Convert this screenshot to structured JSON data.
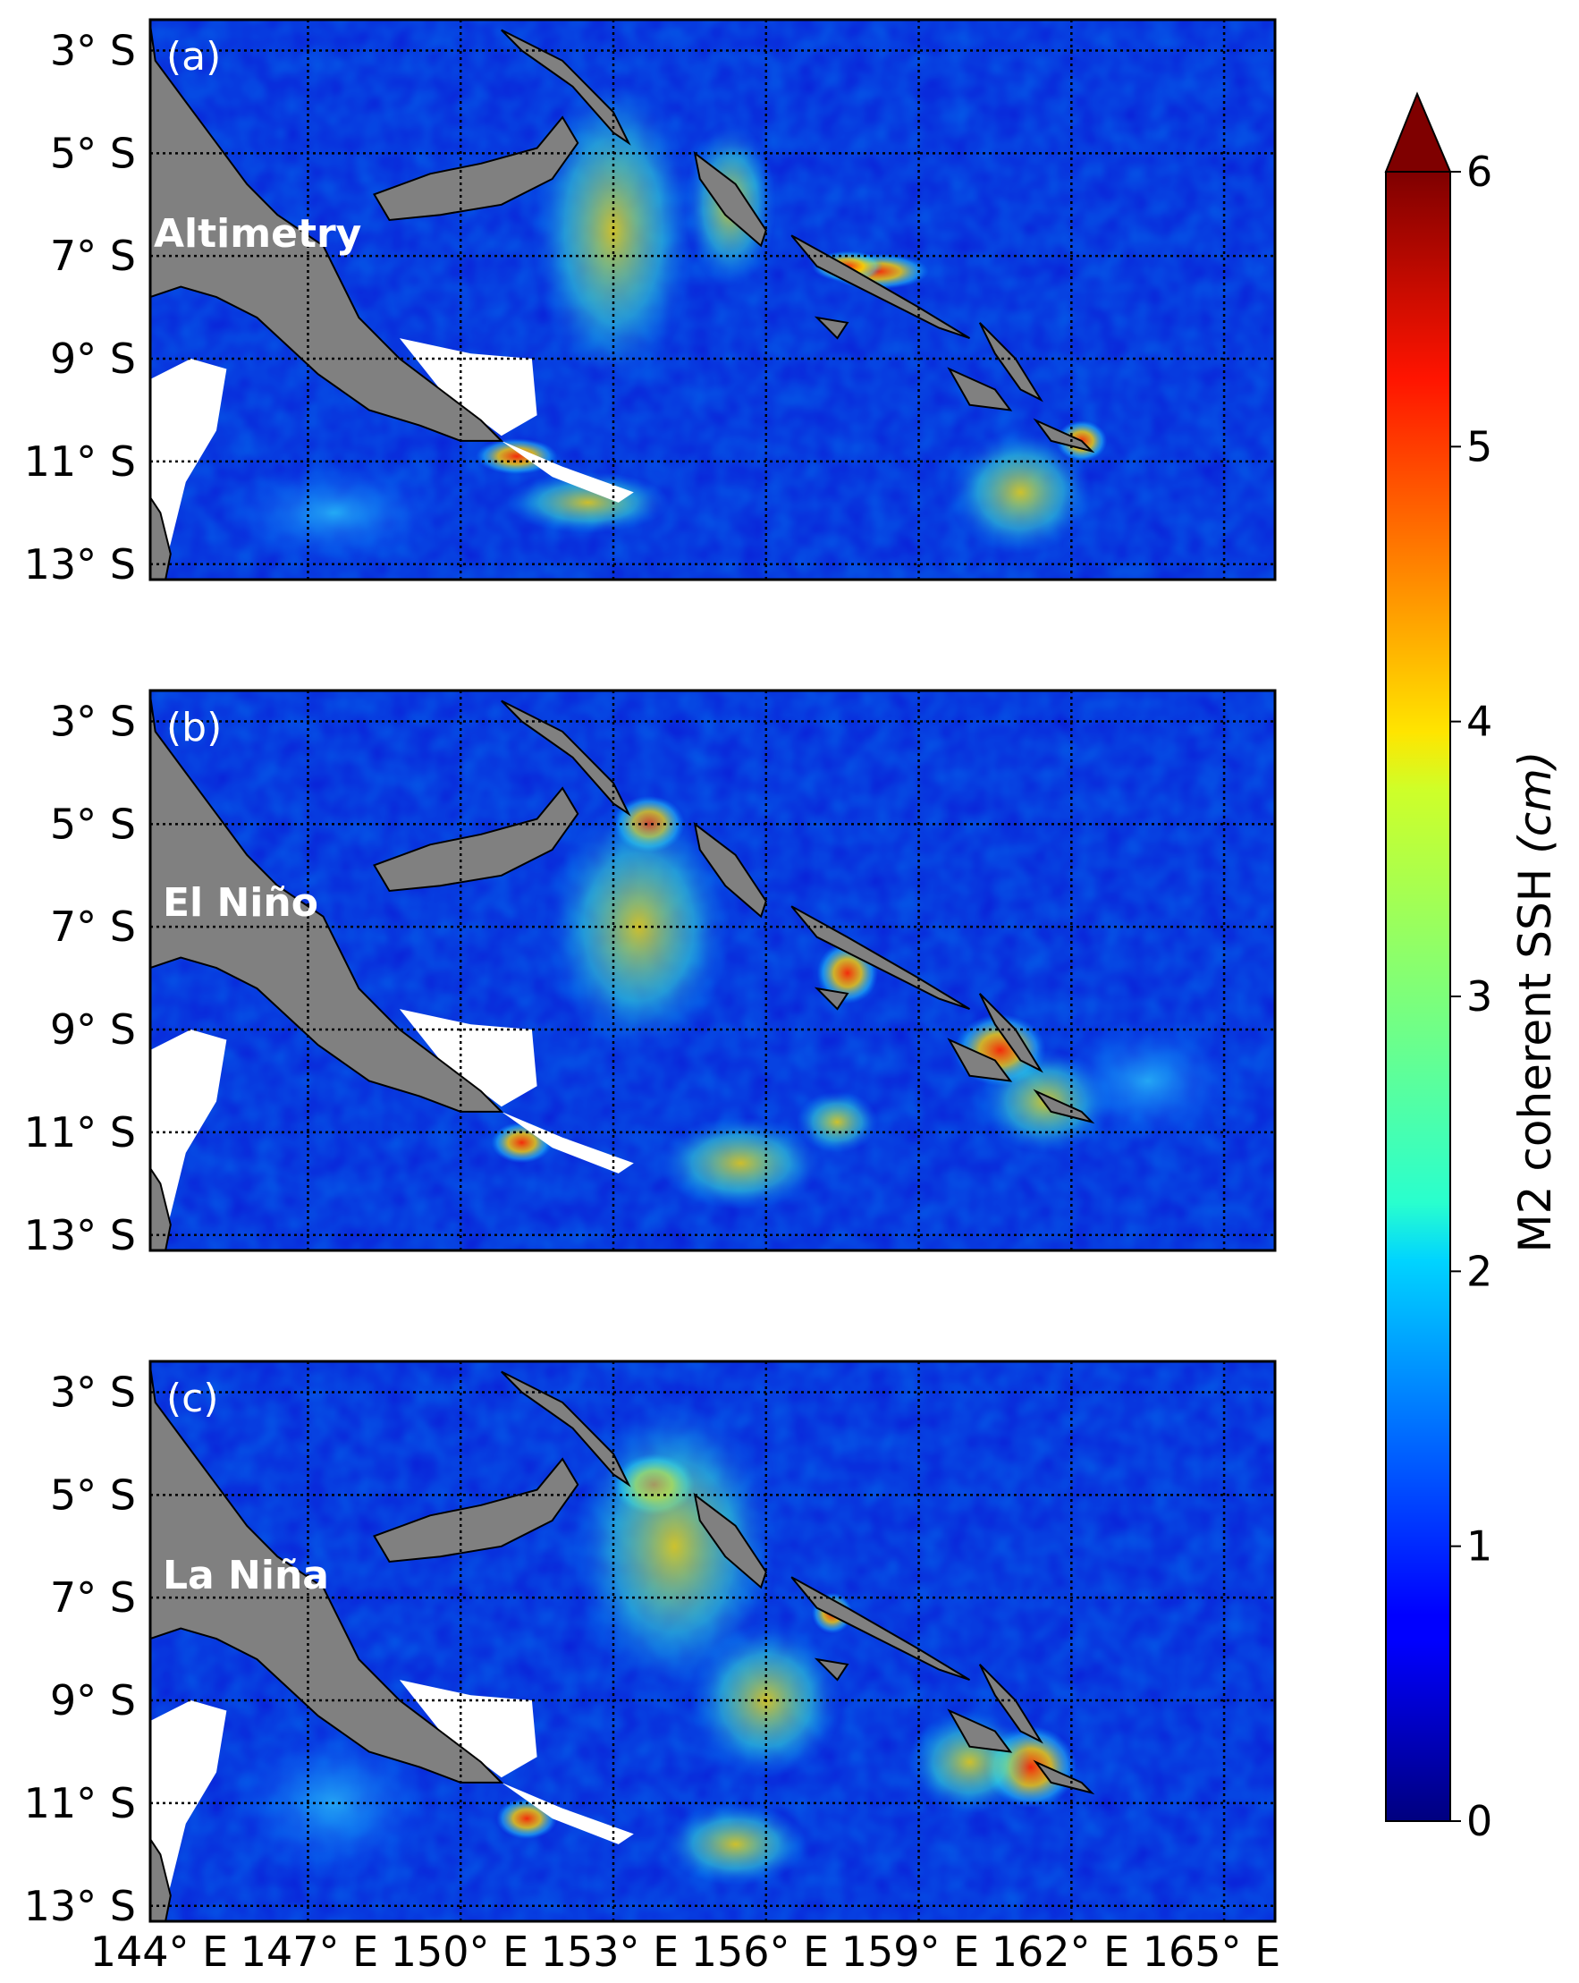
{
  "map": {
    "lat_ticks": [
      "3° S",
      "5° S",
      "7° S",
      "9° S",
      "11° S",
      "13° S"
    ],
    "lon_ticks": [
      "144° E",
      "147° E",
      "150° E",
      "153° E",
      "156° E",
      "159° E",
      "162° E",
      "165° E"
    ],
    "extent": {
      "lon": [
        143.9,
        166.0
      ],
      "lat": [
        -13.3,
        -2.4
      ]
    },
    "land_color": "#808080",
    "missing_data_color": "#ffffff",
    "panels": [
      {
        "letter": "(a)",
        "name": "Altimetry"
      },
      {
        "letter": "(b)",
        "name": "El Niño"
      },
      {
        "letter": "(c)",
        "name": "La Niña"
      }
    ],
    "colorbar": {
      "colormap": "jet",
      "ticks": [
        "0",
        "1",
        "2",
        "3",
        "4",
        "5",
        "6"
      ],
      "range": [
        0,
        6
      ],
      "extend": "max",
      "label": "M2 coherent SSH",
      "unit": "(cm)"
    }
  }
}
